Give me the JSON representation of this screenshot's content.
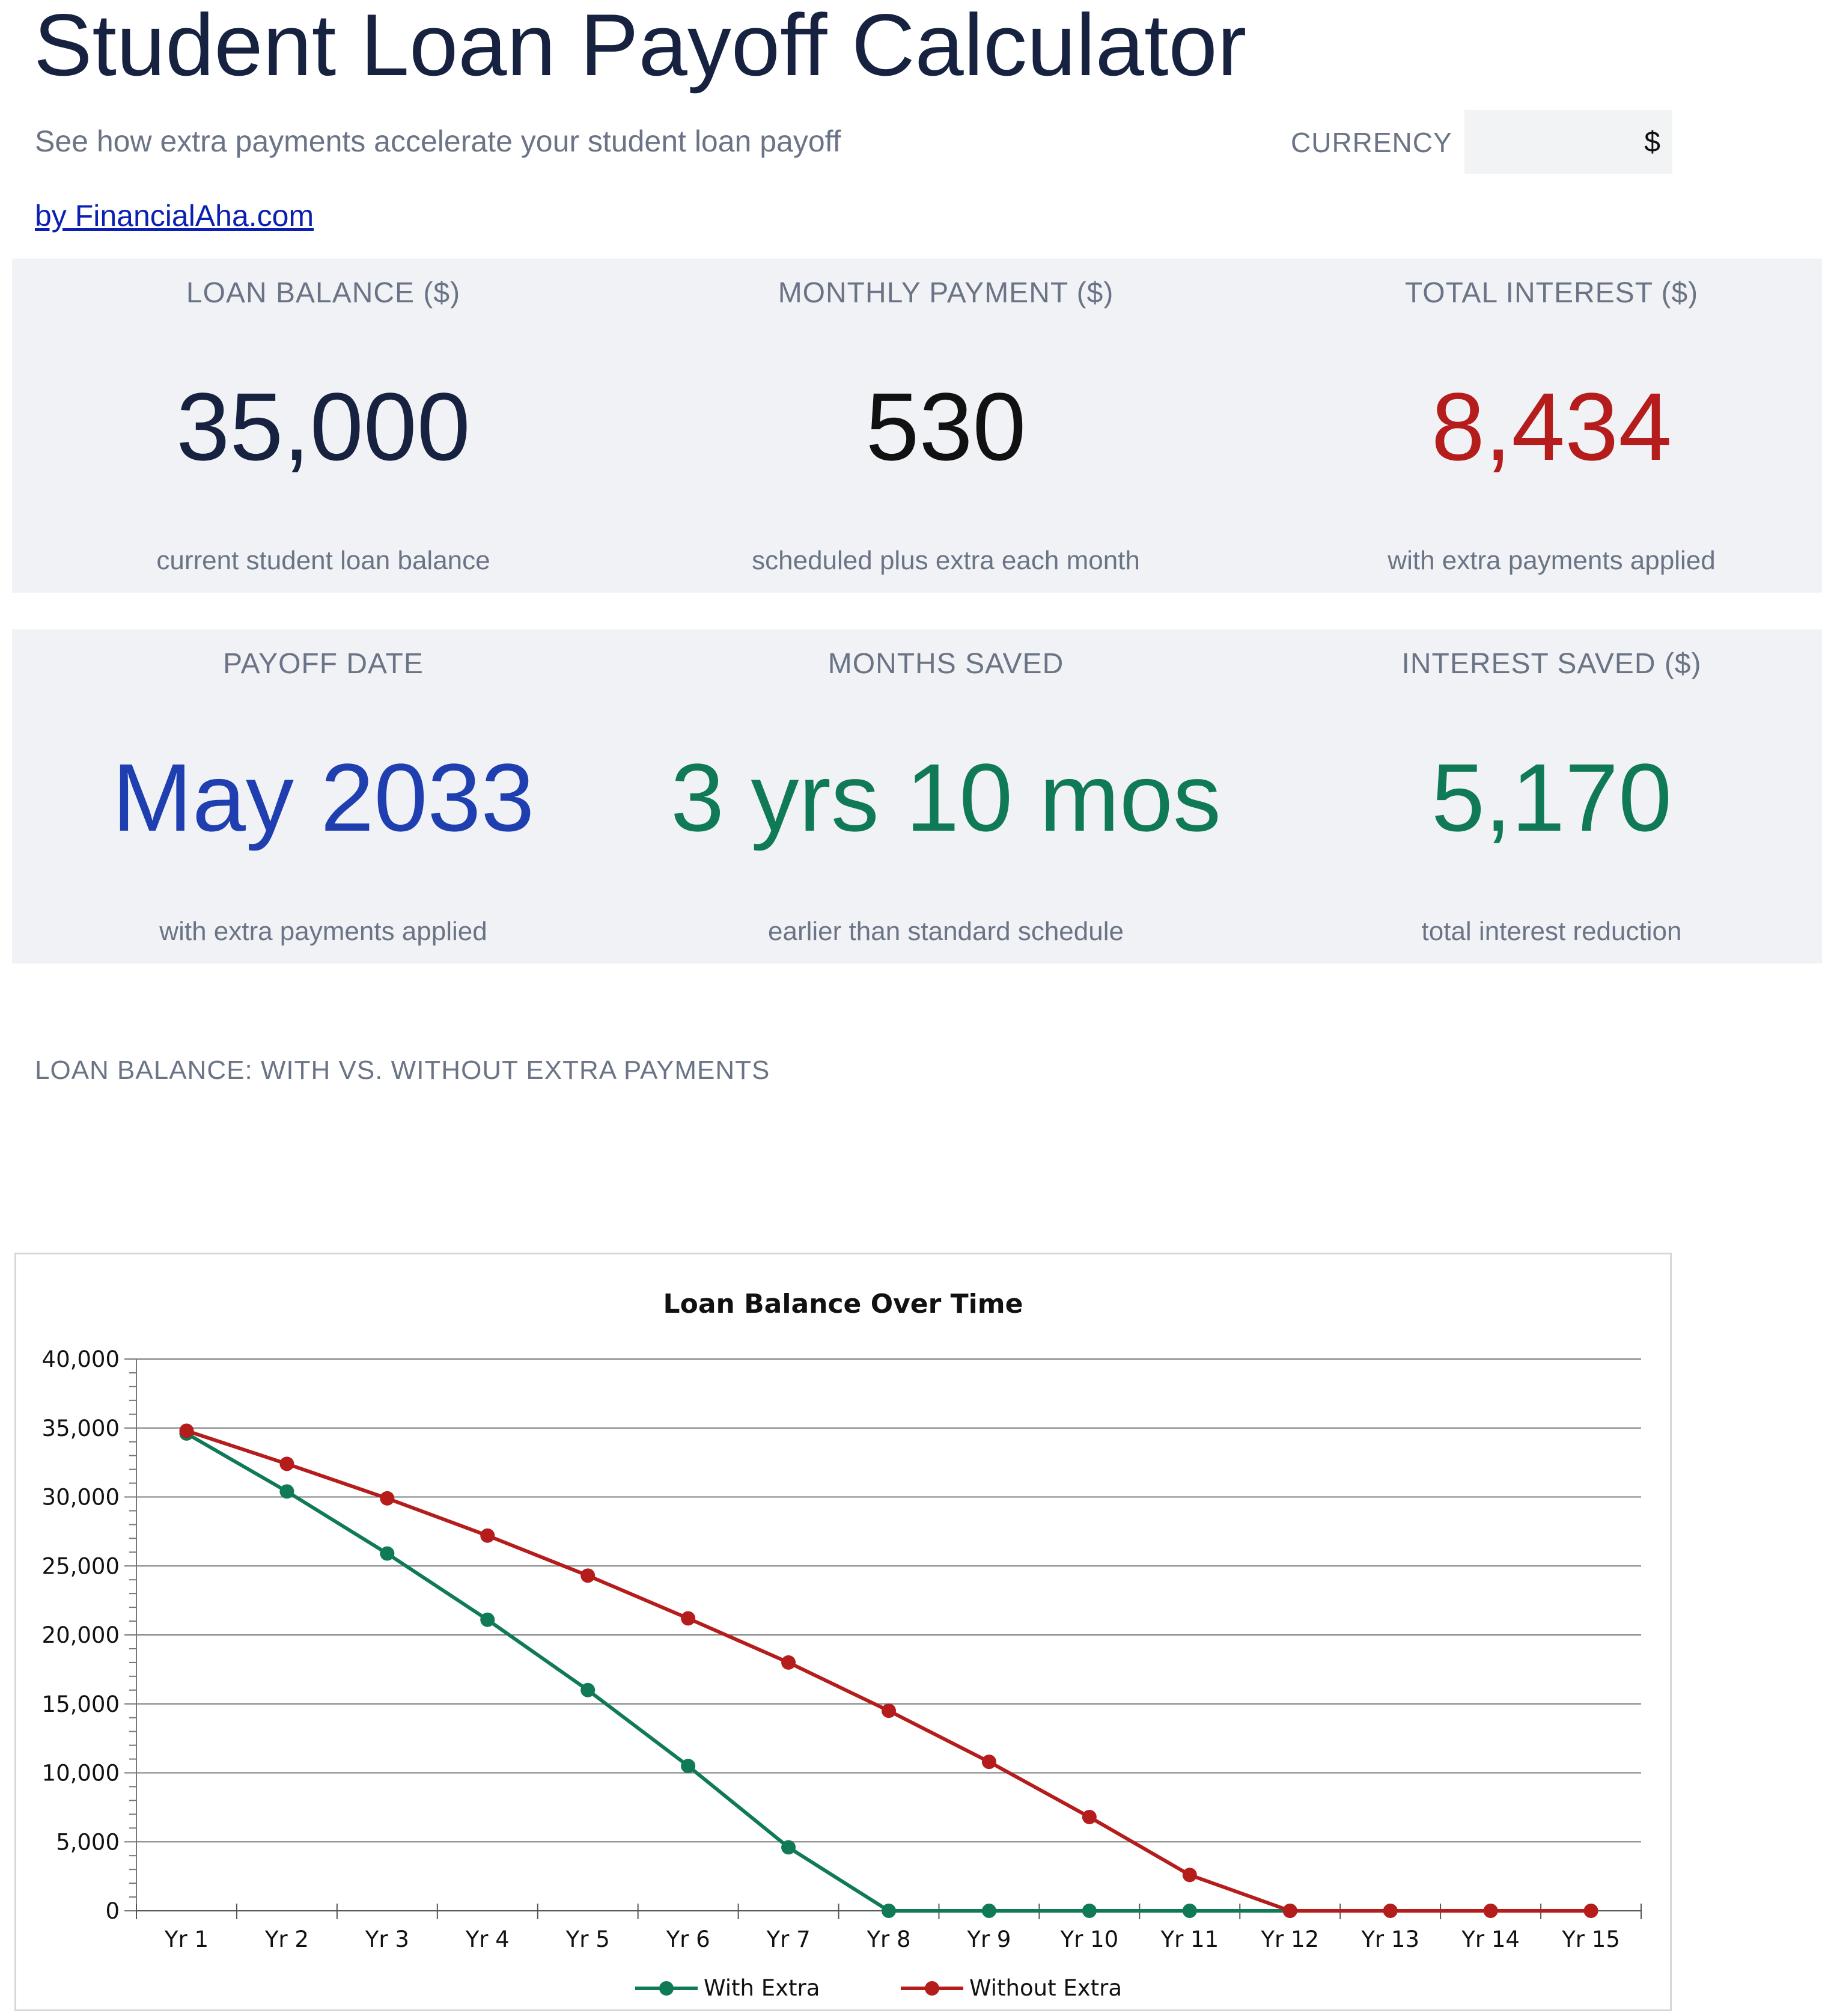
{
  "header": {
    "title": "Student Loan Payoff Calculator",
    "subtitle": "See how extra payments accelerate your student loan payoff",
    "byline": "by FinancialAha.com",
    "currency_label": "CURRENCY",
    "currency_value": "$"
  },
  "summary_row_1": [
    {
      "label": "LOAN BALANCE ($)",
      "value": "35,000",
      "desc": "current student loan balance",
      "color": "#16223f"
    },
    {
      "label": "MONTHLY PAYMENT ($)",
      "value": "530",
      "desc": "scheduled plus extra each month",
      "color": "#111111"
    },
    {
      "label": "TOTAL INTEREST ($)",
      "value": "8,434",
      "desc": "with extra payments applied",
      "color": "#b51c1c"
    }
  ],
  "summary_row_2": [
    {
      "label": "PAYOFF DATE",
      "value": "May 2033",
      "desc": "with extra payments applied",
      "color": "#1f3fb0"
    },
    {
      "label": "MONTHS SAVED",
      "value": "3 yrs 10 mos",
      "desc": "earlier than standard schedule",
      "color": "#0f7a55"
    },
    {
      "label": "INTEREST SAVED ($)",
      "value": "5,170",
      "desc": "total interest reduction",
      "color": "#0f7a55"
    }
  ],
  "chart_section_label": "LOAN BALANCE: WITH VS. WITHOUT EXTRA PAYMENTS",
  "chart_data": {
    "type": "line",
    "title": "Loan Balance Over Time",
    "xlabel": "",
    "ylabel": "",
    "categories": [
      "Yr 1",
      "Yr 2",
      "Yr 3",
      "Yr 4",
      "Yr 5",
      "Yr 6",
      "Yr 7",
      "Yr 8",
      "Yr 9",
      "Yr 10",
      "Yr 11",
      "Yr 12",
      "Yr 13",
      "Yr 14",
      "Yr 15"
    ],
    "y_ticks": [
      "0",
      "5,000",
      "10,000",
      "15,000",
      "20,000",
      "25,000",
      "30,000",
      "35,000",
      "40,000"
    ],
    "ylim": [
      0,
      40000
    ],
    "grid": true,
    "legend": "bottom",
    "series": [
      {
        "name": "With Extra",
        "color": "#0f7a55",
        "values": [
          34600,
          30400,
          25900,
          21100,
          16000,
          10500,
          4600,
          0,
          0,
          0,
          0,
          0,
          null,
          null,
          null
        ]
      },
      {
        "name": "Without Extra",
        "color": "#b51c1c",
        "values": [
          34800,
          32400,
          29900,
          27200,
          24300,
          21200,
          18000,
          14500,
          10800,
          6800,
          2600,
          0,
          0,
          0,
          0
        ]
      }
    ]
  }
}
